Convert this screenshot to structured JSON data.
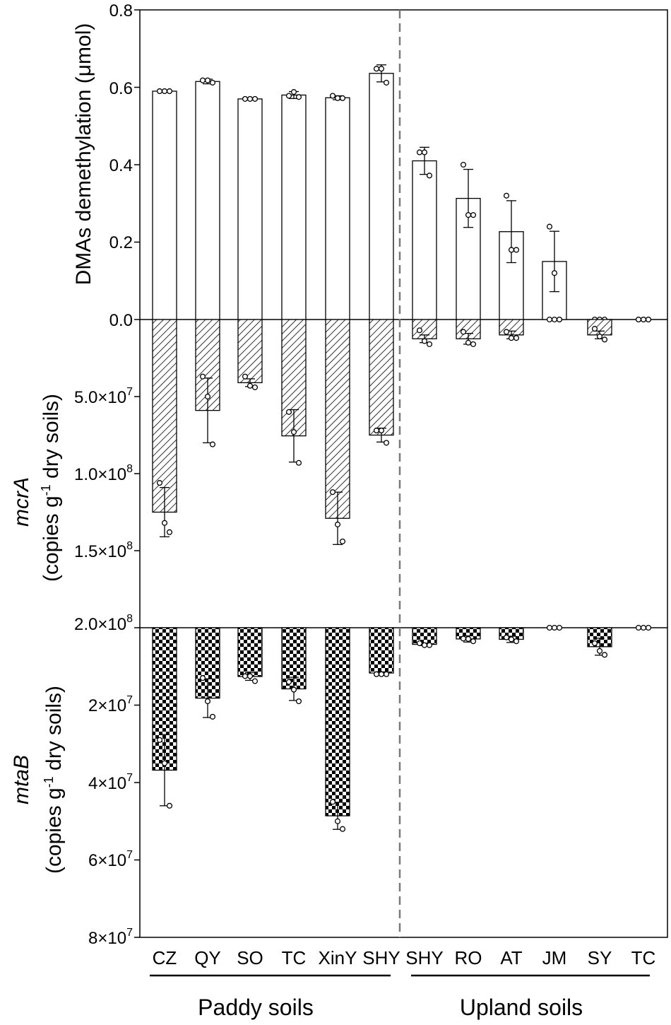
{
  "chart_data": {
    "type": "bar",
    "categories": [
      "CZ",
      "QY",
      "SO",
      "TC",
      "XinY",
      "SHY",
      "SHY",
      "RO",
      "AT",
      "JM",
      "SY",
      "TC"
    ],
    "groups": [
      {
        "name": "Paddy soils",
        "categories": [
          "CZ",
          "QY",
          "SO",
          "TC",
          "XinY",
          "SHY"
        ]
      },
      {
        "name": "Upland soils",
        "categories": [
          "SHY",
          "RO",
          "AT",
          "JM",
          "SY",
          "TC"
        ]
      }
    ],
    "panels": [
      {
        "id": "dmas",
        "ylabel": "DMAs demethylation (μmol)",
        "ylim": [
          0,
          0.8
        ],
        "ticks": [
          0.8,
          0.6,
          0.4,
          0.2,
          0.0
        ],
        "tick_labels": [
          "0.8",
          "0.6",
          "0.4",
          "0.2",
          "0.0"
        ],
        "pattern": "open",
        "values": [
          0.59,
          0.615,
          0.57,
          0.58,
          0.573,
          0.636,
          0.41,
          0.313,
          0.227,
          0.15,
          0.0,
          0.0
        ],
        "errors": [
          0.002,
          0.006,
          0.002,
          0.009,
          0.005,
          0.022,
          0.035,
          0.075,
          0.08,
          0.078,
          0.0,
          0.0
        ],
        "points": [
          [
            0.59,
            0.59,
            0.59
          ],
          [
            0.618,
            0.618,
            0.612
          ],
          [
            0.57,
            0.57,
            0.57
          ],
          [
            0.578,
            0.588,
            0.575
          ],
          [
            0.578,
            0.572,
            0.572
          ],
          [
            0.648,
            0.648,
            0.612
          ],
          [
            0.432,
            0.432,
            0.372
          ],
          [
            0.4,
            0.27,
            0.27
          ],
          [
            0.32,
            0.18,
            0.18
          ],
          [
            0.24,
            0.12,
            0.0
          ],
          [
            0.0,
            0.0,
            0.0
          ],
          [
            0.0,
            0.0,
            0.0
          ]
        ]
      },
      {
        "id": "mcrA",
        "ylabel_italic": "mcrA",
        "ylabel": "(copies g-1 dry soils)",
        "ylim": [
          0,
          200000000
        ],
        "ticks": [
          50000000,
          100000000,
          150000000,
          200000000
        ],
        "tick_labels": [
          "5.0×10⁷",
          "1.0×10⁸",
          "1.5×10⁸",
          "2.0×10⁸"
        ],
        "pattern": "hatched",
        "values": [
          125000000,
          59000000,
          41000000,
          75500000,
          129000000,
          75000000,
          12500000,
          12500000,
          10000000,
          0,
          10000000,
          0
        ],
        "errors": [
          16000000,
          21000000,
          2500000,
          17000000,
          17000000,
          4500000,
          2500000,
          3500000,
          2500000,
          0,
          2500000,
          0
        ],
        "points": [
          [
            106000000,
            132000000,
            138000000
          ],
          [
            37000000,
            50000000,
            81000000
          ],
          [
            37000000,
            43000000,
            44000000
          ],
          [
            60000000,
            73000000,
            93000000
          ],
          [
            112000000,
            133000000,
            144000000
          ],
          [
            72000000,
            72000000,
            80000000
          ],
          [
            7000000,
            14000000,
            16000000
          ],
          [
            8000000,
            15000000,
            16000000
          ],
          [
            8000000,
            12000000,
            12000000
          ],
          [
            0,
            0,
            0
          ],
          [
            6000000,
            11000000,
            13000000
          ],
          [
            0,
            0,
            0
          ]
        ]
      },
      {
        "id": "mtaB",
        "ylabel_italic": "mtaB",
        "ylabel": "(copies g-1 dry soils)",
        "ylim": [
          0,
          80000000
        ],
        "ticks": [
          20000000,
          40000000,
          60000000,
          80000000
        ],
        "tick_labels": [
          "2×10⁷",
          "4×10⁷",
          "6×10⁷",
          "8×10⁷"
        ],
        "pattern": "checkered",
        "values": [
          36800000,
          18200000,
          12600000,
          15800000,
          48600000,
          11700000,
          4300000,
          2900000,
          3000000,
          0,
          4900000,
          0
        ],
        "errors": [
          9200000,
          5000000,
          1000000,
          3000000,
          3500000,
          300000,
          300000,
          800000,
          800000,
          0,
          2200000,
          0
        ],
        "points": [
          [
            29000000,
            35000000,
            46000000
          ],
          [
            13000000,
            19000000,
            23000000
          ],
          [
            12500000,
            12500000,
            13800000
          ],
          [
            14000000,
            16000000,
            19000000
          ],
          [
            45000000,
            50000000,
            52000000
          ],
          [
            12000000,
            12000000,
            12000000
          ],
          [
            4000000,
            4500000,
            4500000
          ],
          [
            2800000,
            2900000,
            3500000
          ],
          [
            2500000,
            3000000,
            3500000
          ],
          [
            0,
            0,
            0
          ],
          [
            4000000,
            6000000,
            7000000
          ],
          [
            0,
            0,
            0
          ]
        ]
      }
    ],
    "divider": "dashed line between Paddy soils and Upland soils"
  },
  "axis_titles": {
    "dmas": "DMAs demethylation (μmol)",
    "mcrA_gene": "mcrA",
    "mtaB_gene": "mtaB",
    "copies_prefix": "(copies g",
    "copies_sup": "-1",
    "copies_suffix": " dry soils)"
  },
  "tick_text": {
    "dmas": [
      "0.8",
      "0.6",
      "0.4",
      "0.2",
      "0.0"
    ],
    "mcrA": [
      {
        "mant": "5.0×10",
        "exp": "7"
      },
      {
        "mant": "1.0×10",
        "exp": "8"
      },
      {
        "mant": "1.5×10",
        "exp": "8"
      },
      {
        "mant": "2.0×10",
        "exp": "8"
      }
    ],
    "mtaB": [
      {
        "mant": "2×10",
        "exp": "7"
      },
      {
        "mant": "4×10",
        "exp": "7"
      },
      {
        "mant": "6×10",
        "exp": "7"
      },
      {
        "mant": "8×10",
        "exp": "7"
      }
    ]
  },
  "group_labels": [
    "Paddy soils",
    "Upland soils"
  ]
}
